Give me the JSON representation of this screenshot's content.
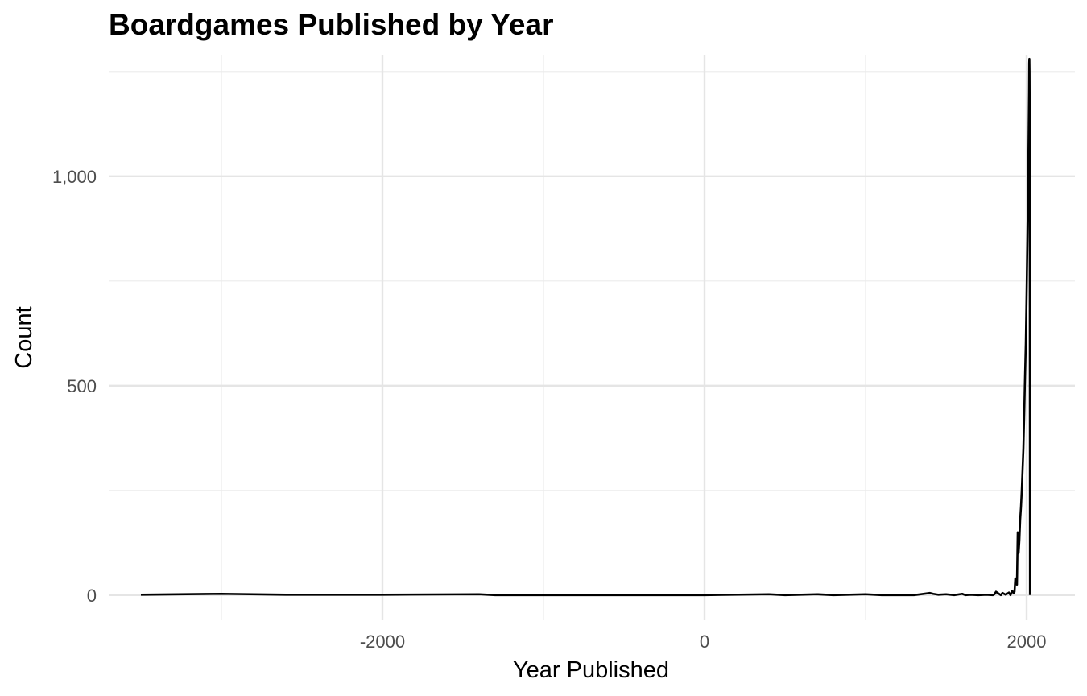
{
  "chart_data": {
    "type": "line",
    "title": "Boardgames Published by Year",
    "xlabel": "Year Published",
    "ylabel": "Count",
    "xlim": [
      -3700,
      2300
    ],
    "ylim": [
      -60,
      1290
    ],
    "x_ticks": [
      -2000,
      0,
      2000
    ],
    "x_tick_labels": [
      "-2000",
      "0",
      "2000"
    ],
    "x_minor_ticks": [
      -3000,
      -1000,
      1000
    ],
    "y_ticks": [
      0,
      500,
      1000
    ],
    "y_tick_labels": [
      "0",
      "500",
      "1,000"
    ],
    "y_minor_ticks": [
      250,
      750,
      1250
    ],
    "grid": true,
    "legend": "none",
    "series": [
      {
        "color": "#000000",
        "x": [
          -3500,
          -3000,
          -2600,
          -2000,
          -1400,
          -1300,
          -400,
          0,
          400,
          500,
          700,
          800,
          1000,
          1100,
          1300,
          1400,
          1420,
          1450,
          1500,
          1550,
          1600,
          1620,
          1650,
          1700,
          1750,
          1790,
          1800,
          1810,
          1840,
          1850,
          1870,
          1890,
          1900,
          1910,
          1920,
          1925,
          1930,
          1935,
          1940,
          1945,
          1950,
          1955,
          1960,
          1965,
          1970,
          1975,
          1980,
          1985,
          1990,
          1995,
          2000,
          2005,
          2010,
          2012,
          2015,
          2016,
          2017,
          2018,
          2019,
          2020,
          2021
        ],
        "y": [
          1,
          3,
          1,
          1,
          2,
          0,
          0,
          0,
          2,
          0,
          2,
          0,
          2,
          0,
          0,
          5,
          3,
          1,
          2,
          0,
          3,
          0,
          1,
          0,
          1,
          0,
          2,
          8,
          0,
          5,
          1,
          6,
          0,
          10,
          5,
          8,
          40,
          30,
          25,
          150,
          100,
          130,
          180,
          210,
          250,
          300,
          350,
          430,
          520,
          600,
          720,
          850,
          1000,
          1080,
          1200,
          1270,
          1280,
          1250,
          1150,
          600,
          0
        ]
      }
    ]
  }
}
